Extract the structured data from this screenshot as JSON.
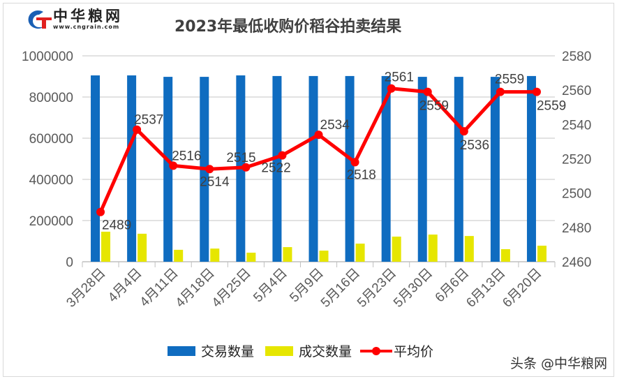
{
  "logo": {
    "name": "中华粮网",
    "url": "www.cngrain.com"
  },
  "watermark": "头条 @中华粮网",
  "chart_data": {
    "type": "bar",
    "title": "2023年最低收购价稻谷拍卖结果",
    "categories": [
      "3月28日",
      "4月4日",
      "4月11日",
      "4月18日",
      "4月25日",
      "5月4日",
      "5月9日",
      "5月16日",
      "5月23日",
      "5月30日",
      "6月6日",
      "6月13日",
      "6月20日"
    ],
    "series": [
      {
        "name": "交易数量",
        "type": "bar",
        "axis": "left",
        "color": "#0f6cc0",
        "values": [
          905000,
          905000,
          898000,
          898000,
          905000,
          902000,
          902000,
          902000,
          902000,
          898000,
          898000,
          898000,
          902000
        ]
      },
      {
        "name": "成交数量",
        "type": "bar",
        "axis": "left",
        "color": "#e6e600",
        "values": [
          146000,
          136000,
          58000,
          64000,
          44000,
          71000,
          54000,
          88000,
          122000,
          132000,
          125000,
          61000,
          78000
        ]
      },
      {
        "name": "平均价",
        "type": "line",
        "axis": "right",
        "color": "#ff0000",
        "values": [
          2489,
          2537,
          2516,
          2514,
          2515,
          2522,
          2534,
          2518,
          2561,
          2559,
          2536,
          2559,
          2559
        ]
      }
    ],
    "yleft": {
      "lim": [
        0,
        1000000
      ],
      "ticks": [
        "0",
        "200000",
        "400000",
        "600000",
        "800000",
        "1000000"
      ]
    },
    "yright": {
      "lim": [
        2460,
        2580
      ],
      "ticks": [
        "2460",
        "2480",
        "2500",
        "2520",
        "2540",
        "2560",
        "2580"
      ]
    },
    "grid": true,
    "legend": "bottom"
  }
}
